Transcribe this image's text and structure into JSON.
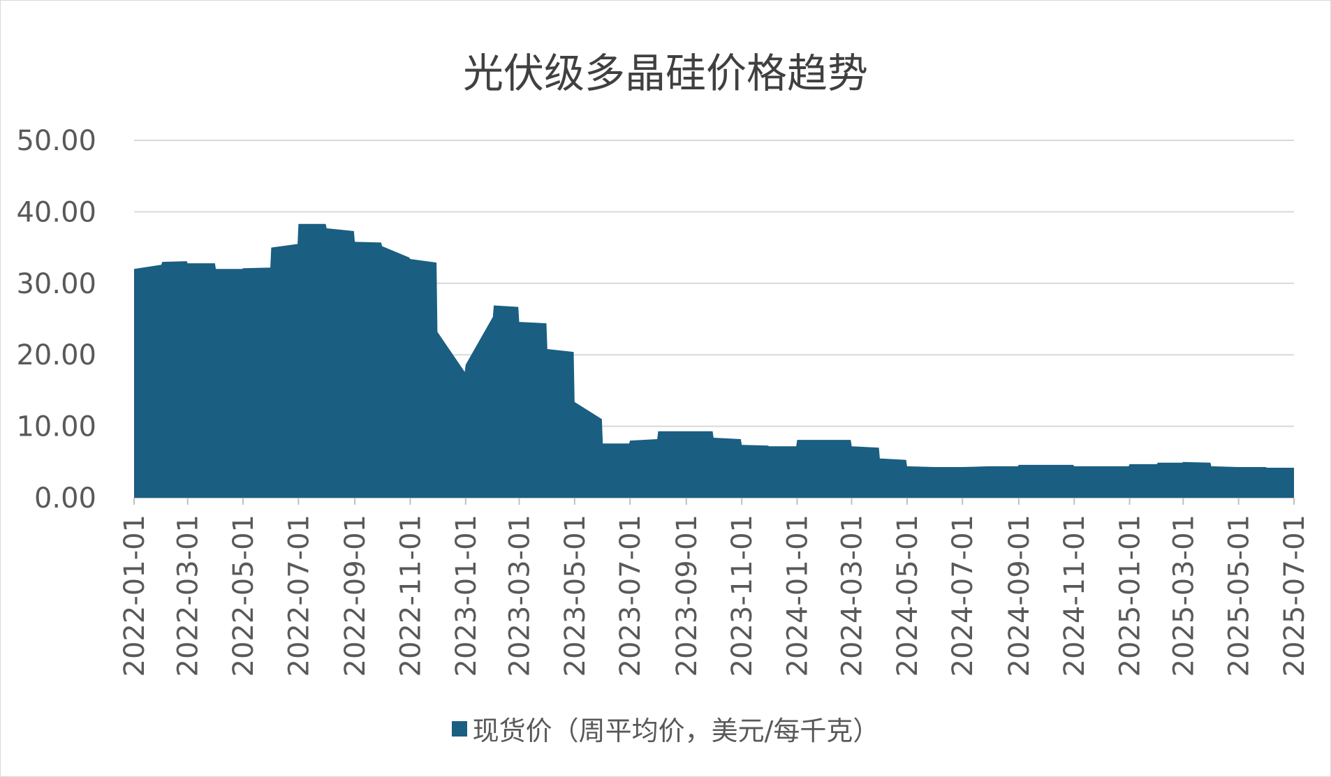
{
  "chart_data": {
    "type": "area",
    "title": "光伏级多晶硅价格趋势",
    "xlabel": "",
    "ylabel": "",
    "ylim": [
      0,
      50
    ],
    "yticks": [
      "0.00",
      "10.00",
      "20.00",
      "30.00",
      "40.00",
      "50.00"
    ],
    "xticks": [
      "2022-01-01",
      "2022-03-01",
      "2022-05-01",
      "2022-07-01",
      "2022-09-01",
      "2022-11-01",
      "2023-01-01",
      "2023-03-01",
      "2023-05-01",
      "2023-07-01",
      "2023-09-01",
      "2023-11-01",
      "2024-01-01",
      "2024-03-01",
      "2024-05-01",
      "2024-07-01",
      "2024-09-01",
      "2024-11-01",
      "2025-01-01",
      "2025-03-01",
      "2025-05-01",
      "2025-07-01"
    ],
    "grid": true,
    "legend_position": "bottom",
    "color": "#1a5e82",
    "series": [
      {
        "name": "现货价（周平均价，美元/每千克）",
        "points": [
          [
            "2022-01-01",
            32.0
          ],
          [
            "2022-01-31",
            32.6
          ],
          [
            "2022-02-01",
            33.0
          ],
          [
            "2022-02-28",
            33.1
          ],
          [
            "2022-03-01",
            32.8
          ],
          [
            "2022-03-31",
            32.8
          ],
          [
            "2022-04-01",
            32.0
          ],
          [
            "2022-04-30",
            32.0
          ],
          [
            "2022-05-01",
            32.1
          ],
          [
            "2022-05-31",
            32.2
          ],
          [
            "2022-06-01",
            35.0
          ],
          [
            "2022-06-30",
            35.5
          ],
          [
            "2022-07-01",
            38.3
          ],
          [
            "2022-07-31",
            38.3
          ],
          [
            "2022-08-01",
            37.7
          ],
          [
            "2022-08-31",
            37.3
          ],
          [
            "2022-09-01",
            35.8
          ],
          [
            "2022-09-30",
            35.7
          ],
          [
            "2022-10-01",
            35.2
          ],
          [
            "2022-10-31",
            33.6
          ],
          [
            "2022-11-01",
            33.4
          ],
          [
            "2022-11-30",
            32.9
          ],
          [
            "2022-12-01",
            23.2
          ],
          [
            "2022-12-31",
            17.6
          ],
          [
            "2023-01-01",
            18.6
          ],
          [
            "2023-01-31",
            25.3
          ],
          [
            "2023-02-01",
            26.9
          ],
          [
            "2023-02-28",
            26.7
          ],
          [
            "2023-03-01",
            24.6
          ],
          [
            "2023-03-31",
            24.4
          ],
          [
            "2023-04-01",
            20.8
          ],
          [
            "2023-04-30",
            20.4
          ],
          [
            "2023-05-01",
            13.4
          ],
          [
            "2023-05-31",
            11.0
          ],
          [
            "2023-06-01",
            7.6
          ],
          [
            "2023-06-30",
            7.6
          ],
          [
            "2023-07-01",
            8.0
          ],
          [
            "2023-07-31",
            8.2
          ],
          [
            "2023-08-01",
            9.3
          ],
          [
            "2023-08-31",
            9.3
          ],
          [
            "2023-09-01",
            9.3
          ],
          [
            "2023-09-30",
            9.3
          ],
          [
            "2023-10-01",
            8.4
          ],
          [
            "2023-10-31",
            8.2
          ],
          [
            "2023-11-01",
            7.4
          ],
          [
            "2023-11-30",
            7.3
          ],
          [
            "2023-12-01",
            7.2
          ],
          [
            "2023-12-31",
            7.2
          ],
          [
            "2024-01-01",
            8.1
          ],
          [
            "2024-01-31",
            8.1
          ],
          [
            "2024-02-01",
            8.1
          ],
          [
            "2024-02-29",
            8.1
          ],
          [
            "2024-03-01",
            7.2
          ],
          [
            "2024-03-31",
            7.0
          ],
          [
            "2024-04-01",
            5.5
          ],
          [
            "2024-04-30",
            5.3
          ],
          [
            "2024-05-01",
            4.4
          ],
          [
            "2024-05-31",
            4.3
          ],
          [
            "2024-06-01",
            4.3
          ],
          [
            "2024-06-30",
            4.3
          ],
          [
            "2024-07-01",
            4.3
          ],
          [
            "2024-07-31",
            4.4
          ],
          [
            "2024-08-01",
            4.4
          ],
          [
            "2024-08-31",
            4.4
          ],
          [
            "2024-09-01",
            4.6
          ],
          [
            "2024-09-30",
            4.6
          ],
          [
            "2024-10-01",
            4.6
          ],
          [
            "2024-10-31",
            4.6
          ],
          [
            "2024-11-01",
            4.4
          ],
          [
            "2024-11-30",
            4.4
          ],
          [
            "2024-12-01",
            4.4
          ],
          [
            "2024-12-31",
            4.4
          ],
          [
            "2025-01-01",
            4.7
          ],
          [
            "2025-01-31",
            4.7
          ],
          [
            "2025-02-01",
            4.9
          ],
          [
            "2025-02-28",
            4.9
          ],
          [
            "2025-03-01",
            5.0
          ],
          [
            "2025-03-31",
            4.9
          ],
          [
            "2025-04-01",
            4.4
          ],
          [
            "2025-04-30",
            4.3
          ],
          [
            "2025-05-01",
            4.3
          ],
          [
            "2025-05-31",
            4.3
          ],
          [
            "2025-06-01",
            4.2
          ],
          [
            "2025-07-01",
            4.2
          ]
        ]
      }
    ]
  }
}
